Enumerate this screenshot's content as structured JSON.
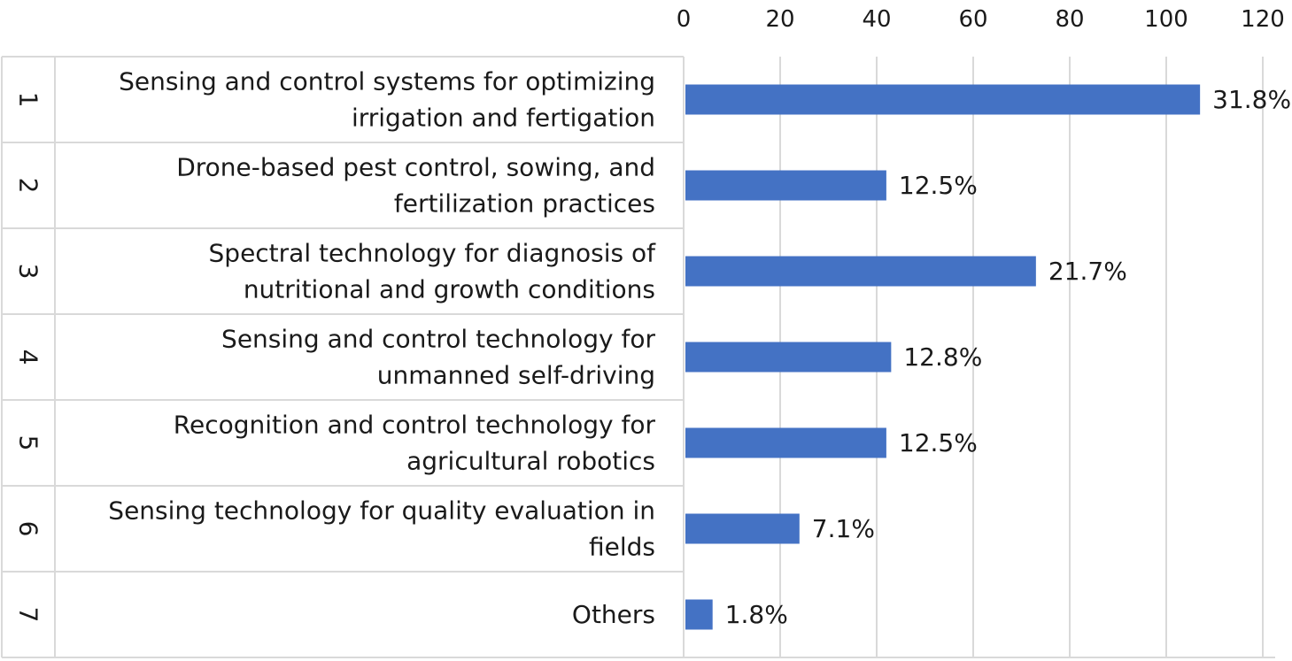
{
  "chart_data": {
    "type": "bar",
    "orientation": "horizontal",
    "categories": [
      {
        "rank": "1",
        "label_lines": [
          "Sensing and control systems for optimizing",
          "irrigation and fertigation"
        ]
      },
      {
        "rank": "2",
        "label_lines": [
          "Drone-based pest control, sowing, and",
          "fertilization practices"
        ]
      },
      {
        "rank": "3",
        "label_lines": [
          "Spectral technology for diagnosis of",
          "nutritional and growth conditions"
        ]
      },
      {
        "rank": "4",
        "label_lines": [
          "Sensing and control technology for",
          "unmanned self-driving"
        ]
      },
      {
        "rank": "5",
        "label_lines": [
          "Recognition and control technology for",
          "agricultural robotics"
        ]
      },
      {
        "rank": "6",
        "label_lines": [
          "Sensing technology for quality evaluation in",
          "fields"
        ]
      },
      {
        "rank": "7",
        "label_lines": [
          "Others"
        ]
      }
    ],
    "values": [
      107,
      42,
      73,
      43,
      42,
      24,
      6
    ],
    "data_labels": [
      "31.8%",
      "12.5%",
      "21.7%",
      "12.8%",
      "12.5%",
      "7.1%",
      "1.8%"
    ],
    "x_ticks": [
      "0",
      "20",
      "40",
      "60",
      "80",
      "100",
      "120"
    ],
    "xlim": [
      0,
      120
    ],
    "x_axis_position": "top",
    "grid": true,
    "bar_color": "#4472C4",
    "gridline_color": "#d9d9d9",
    "table_border_color": "#d9d9d9"
  }
}
